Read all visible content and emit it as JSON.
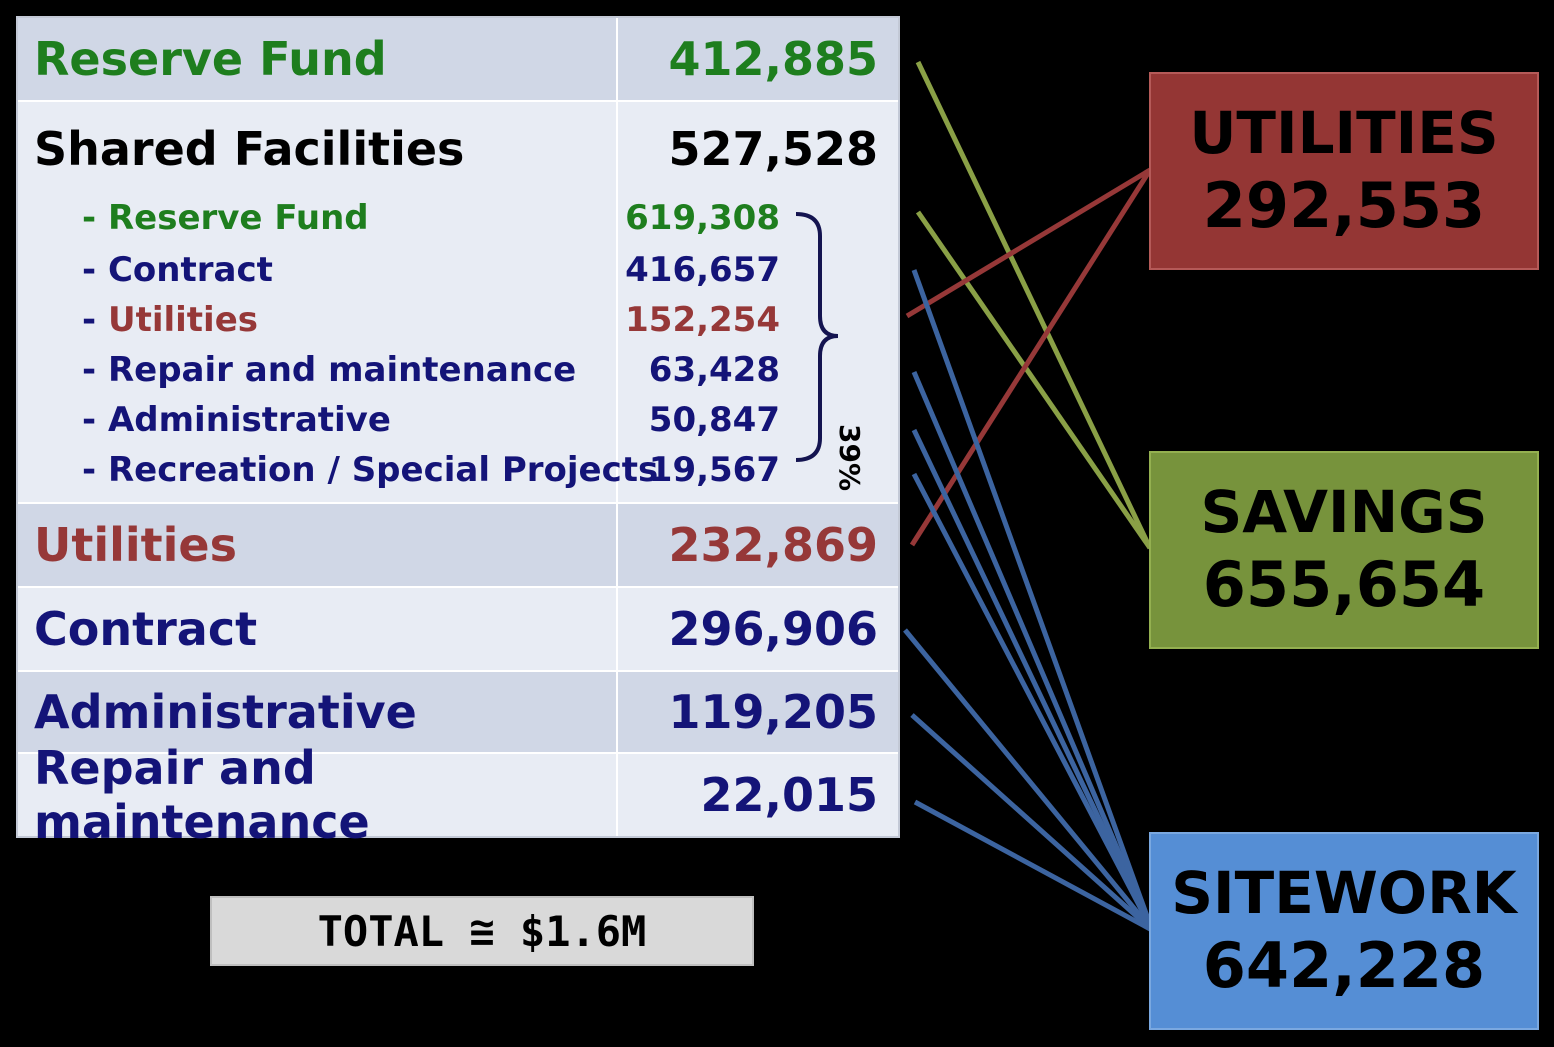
{
  "table": {
    "rows": [
      {
        "label": "Reserve Fund",
        "value": "412,885"
      },
      {
        "label": "Shared Facilities",
        "value": "527,528"
      },
      {
        "label": "Utilities",
        "value": "232,869"
      },
      {
        "label": "Contract",
        "value": "296,906"
      },
      {
        "label": "Administrative",
        "value": "119,205"
      },
      {
        "label": "Repair and maintenance",
        "value": "22,015"
      }
    ],
    "shared_breakdown": [
      {
        "label": "Reserve Fund",
        "value": "619,308"
      },
      {
        "label": "Contract",
        "value": "416,657"
      },
      {
        "label": "Utilities",
        "value": "152,254"
      },
      {
        "label": "Repair and maintenance",
        "value": "63,428"
      },
      {
        "label": "Administrative",
        "value": "50,847"
      },
      {
        "label": "Recreation / Special Projects",
        "value": "19,567"
      }
    ],
    "dash": "-",
    "bracket_percent": "39%"
  },
  "total": "TOTAL ≅ $1.6M",
  "categories": [
    {
      "name": "UTILITIES",
      "value": "292,553",
      "color": "#943634"
    },
    {
      "name": "SAVINGS",
      "value": "655,654",
      "color": "#77933c"
    },
    {
      "name": "SITEWORK",
      "value": "642,228",
      "color": "#558ed5"
    }
  ],
  "colors": {
    "reserve": "#1e7e1e",
    "utilities": "#963838",
    "navy": "#141478",
    "line_green": "#8aa046",
    "line_red": "#963838",
    "line_blue": "#3c64a0"
  }
}
